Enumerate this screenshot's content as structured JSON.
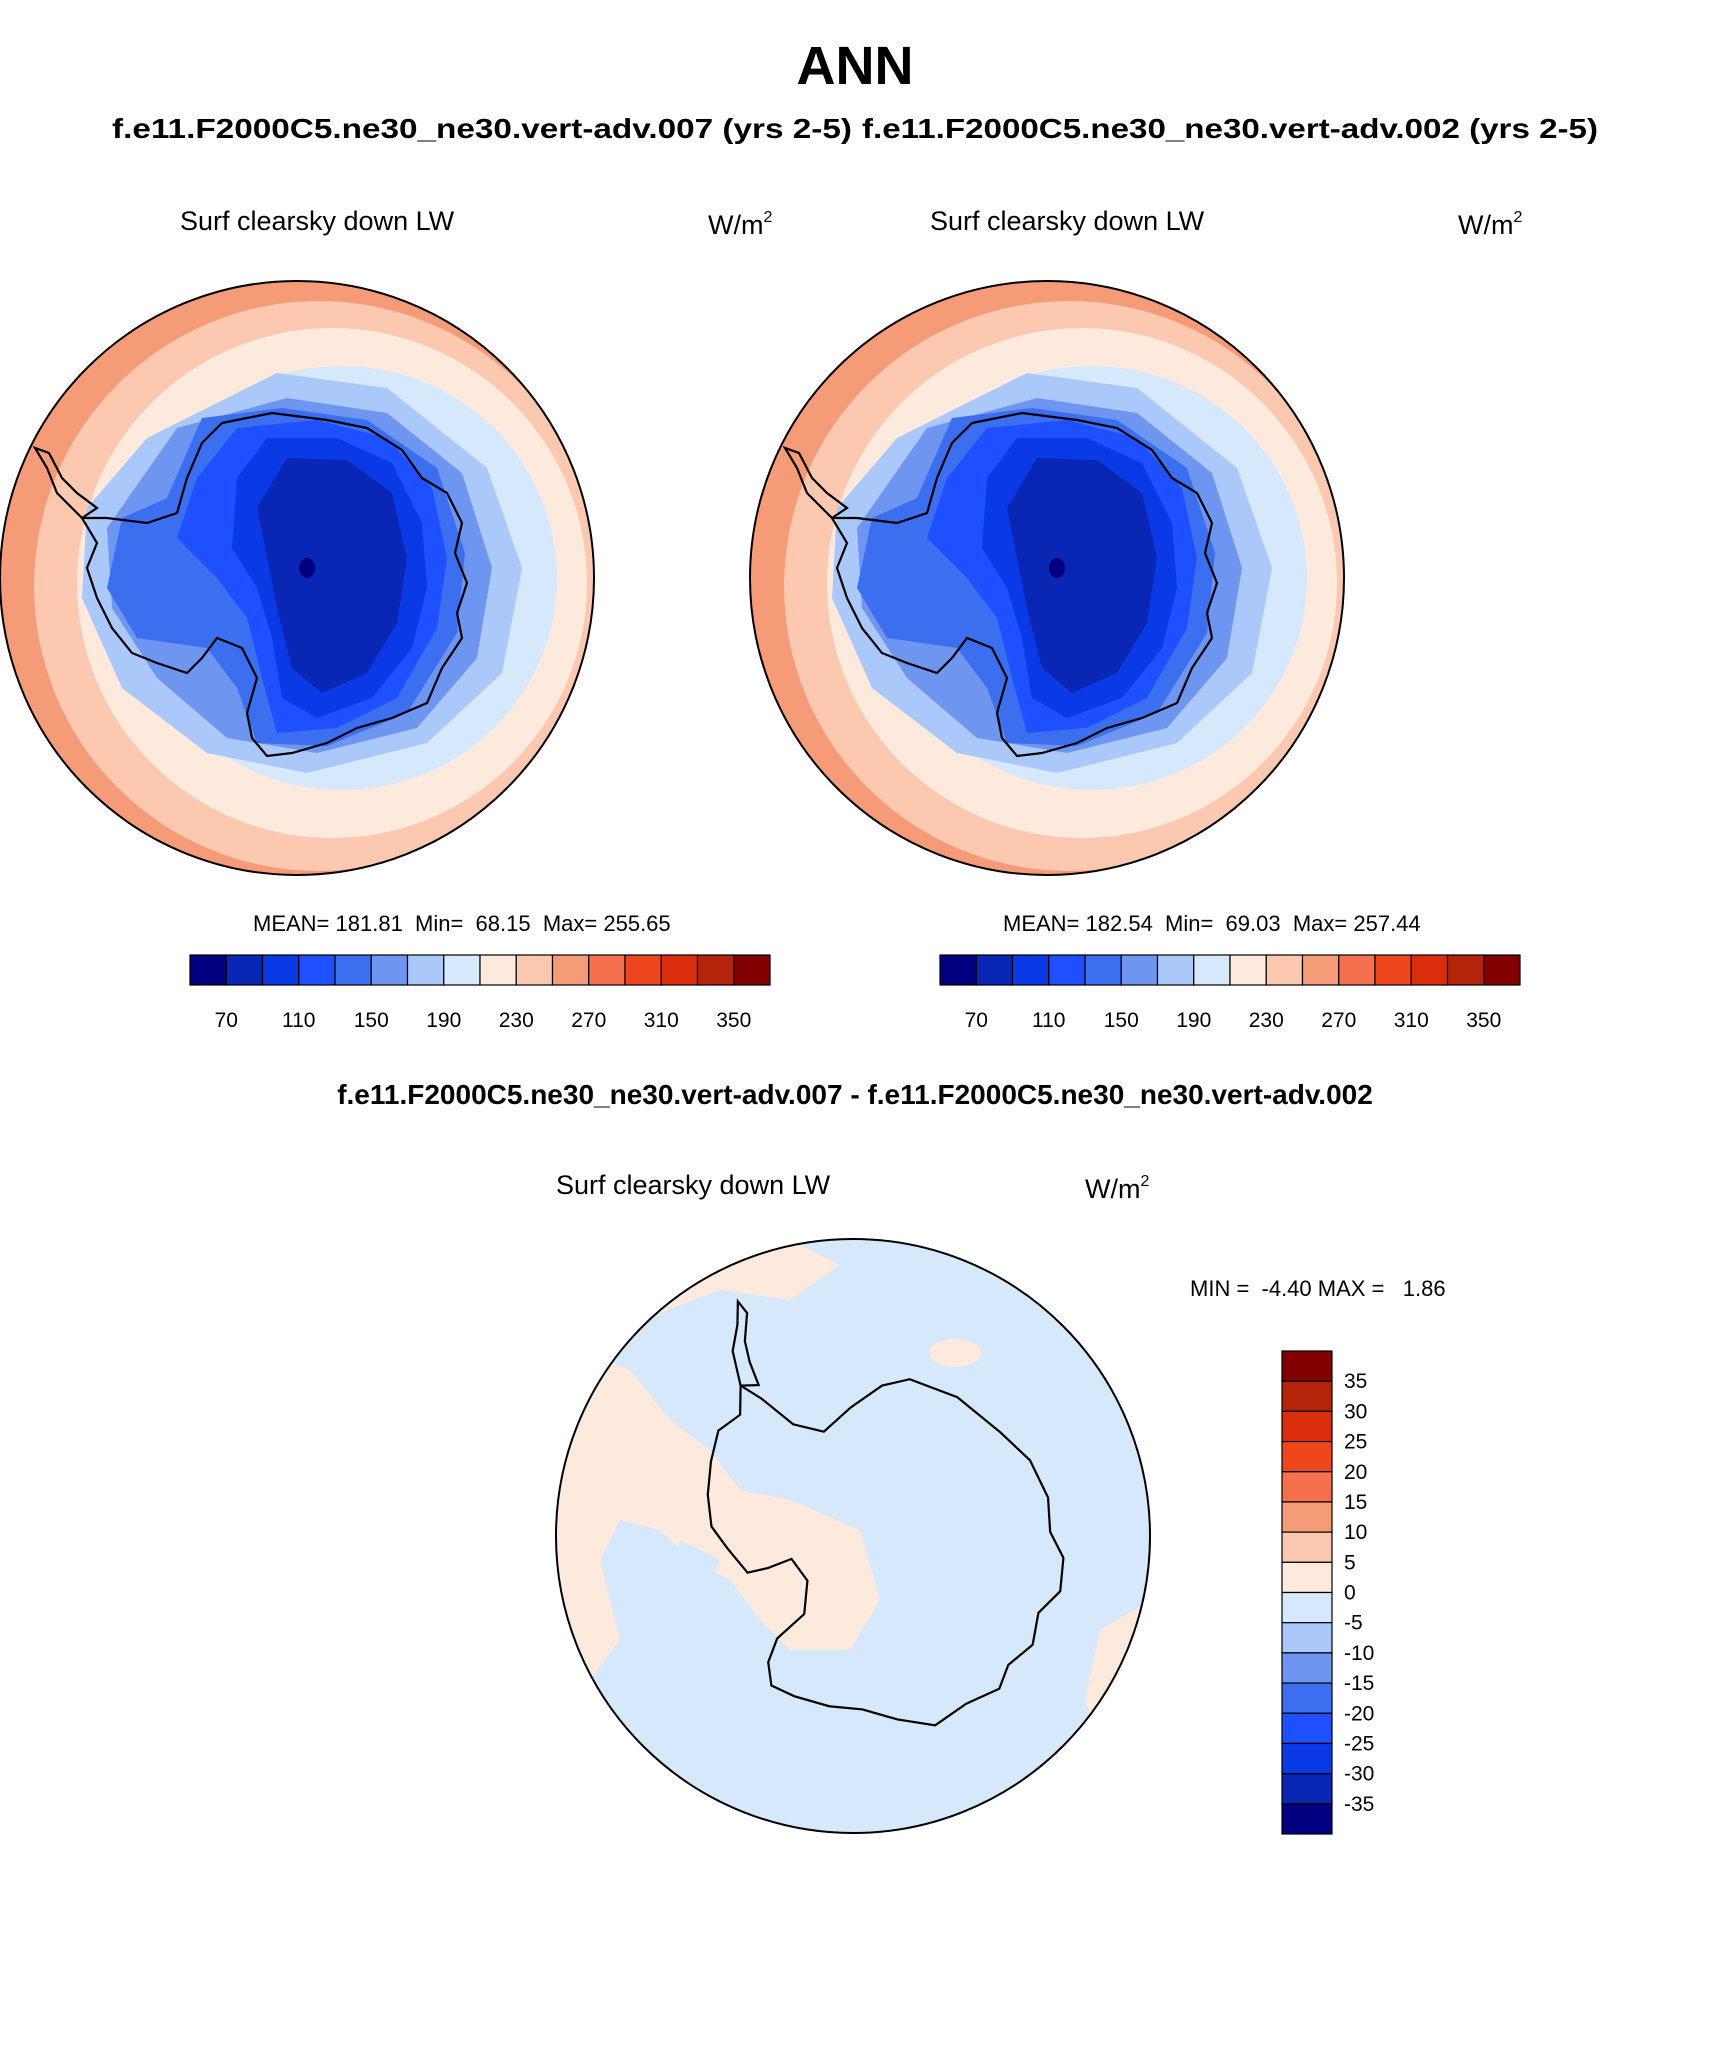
{
  "season": "ANN",
  "case_titles": {
    "left": "f.e11.F2000C5.ne30_ne30.vert-adv.007 (yrs 2-5)",
    "right": "f.e11.F2000C5.ne30_ne30.vert-adv.002 (yrs 2-5)"
  },
  "diff_title": "f.e11.F2000C5.ne30_ne30.vert-adv.007 - f.e11.F2000C5.ne30_ne30.vert-adv.002",
  "panels": [
    {
      "variable": "Surf clearsky down LW",
      "units": "W/m",
      "units_sup": "2",
      "stats": "MEAN= 181.81  Min=  68.15  Max= 255.65"
    },
    {
      "variable": "Surf clearsky down LW",
      "units": "W/m",
      "units_sup": "2",
      "stats": "MEAN= 182.54  Min=  69.03  Max= 257.44"
    },
    {
      "variable": "Surf clearsky down LW",
      "units": "W/m",
      "units_sup": "2",
      "stats": "MIN =  -4.40 MAX =   1.86"
    }
  ],
  "colorbar_abs": {
    "labels": [
      "70",
      "110",
      "150",
      "190",
      "230",
      "270",
      "310",
      "350"
    ],
    "colors": [
      "#000080",
      "#0a26b4",
      "#0a3ae6",
      "#1e50ff",
      "#3c6ef0",
      "#6e96f0",
      "#aac8fa",
      "#d6e8fc",
      "#fdeadc",
      "#fcc8b0",
      "#f59b78",
      "#f5714d",
      "#f0461e",
      "#dc2d0f",
      "#b4230a",
      "#820000"
    ]
  },
  "colorbar_diff": {
    "labels": [
      "35",
      "30",
      "25",
      "20",
      "15",
      "10",
      "5",
      "0",
      "-5",
      "-10",
      "-15",
      "-20",
      "-25",
      "-30",
      "-35"
    ],
    "colors": [
      "#820000",
      "#b4230a",
      "#dc2d0f",
      "#f0461e",
      "#f5714d",
      "#f59b78",
      "#fcc8b0",
      "#fdeadc",
      "#d6e8fc",
      "#aac8fa",
      "#6e96f0",
      "#3c6ef0",
      "#1e50ff",
      "#0a3ae6",
      "#0a26b4",
      "#000080"
    ]
  }
}
